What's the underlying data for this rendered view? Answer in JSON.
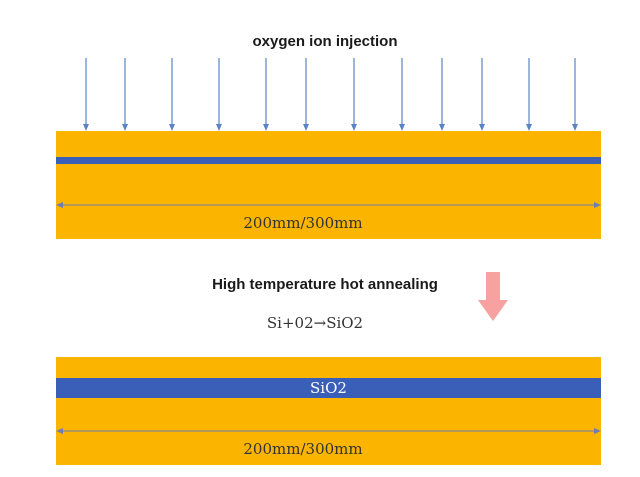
{
  "titles": {
    "injection": "oxygen ion injection",
    "annealing": "High temperature hot annealing"
  },
  "reaction": "Si+02→SiO2",
  "wafer_top": {
    "dimension_label": "200mm/300mm"
  },
  "wafer_bottom": {
    "dimension_label": "200mm/300mm",
    "oxide_label": "SiO2"
  },
  "colors": {
    "wafer": "#FBB400",
    "layer": "#3A5FB8",
    "ion_arrow": "#5B84C4",
    "process_arrow": "#F7A1A1",
    "dimension_line": "#6E7DB0"
  },
  "icons": {
    "ion_arrows": "down-arrow",
    "process_arrow": "big-down-arrow"
  },
  "ion_arrow_count": 12
}
